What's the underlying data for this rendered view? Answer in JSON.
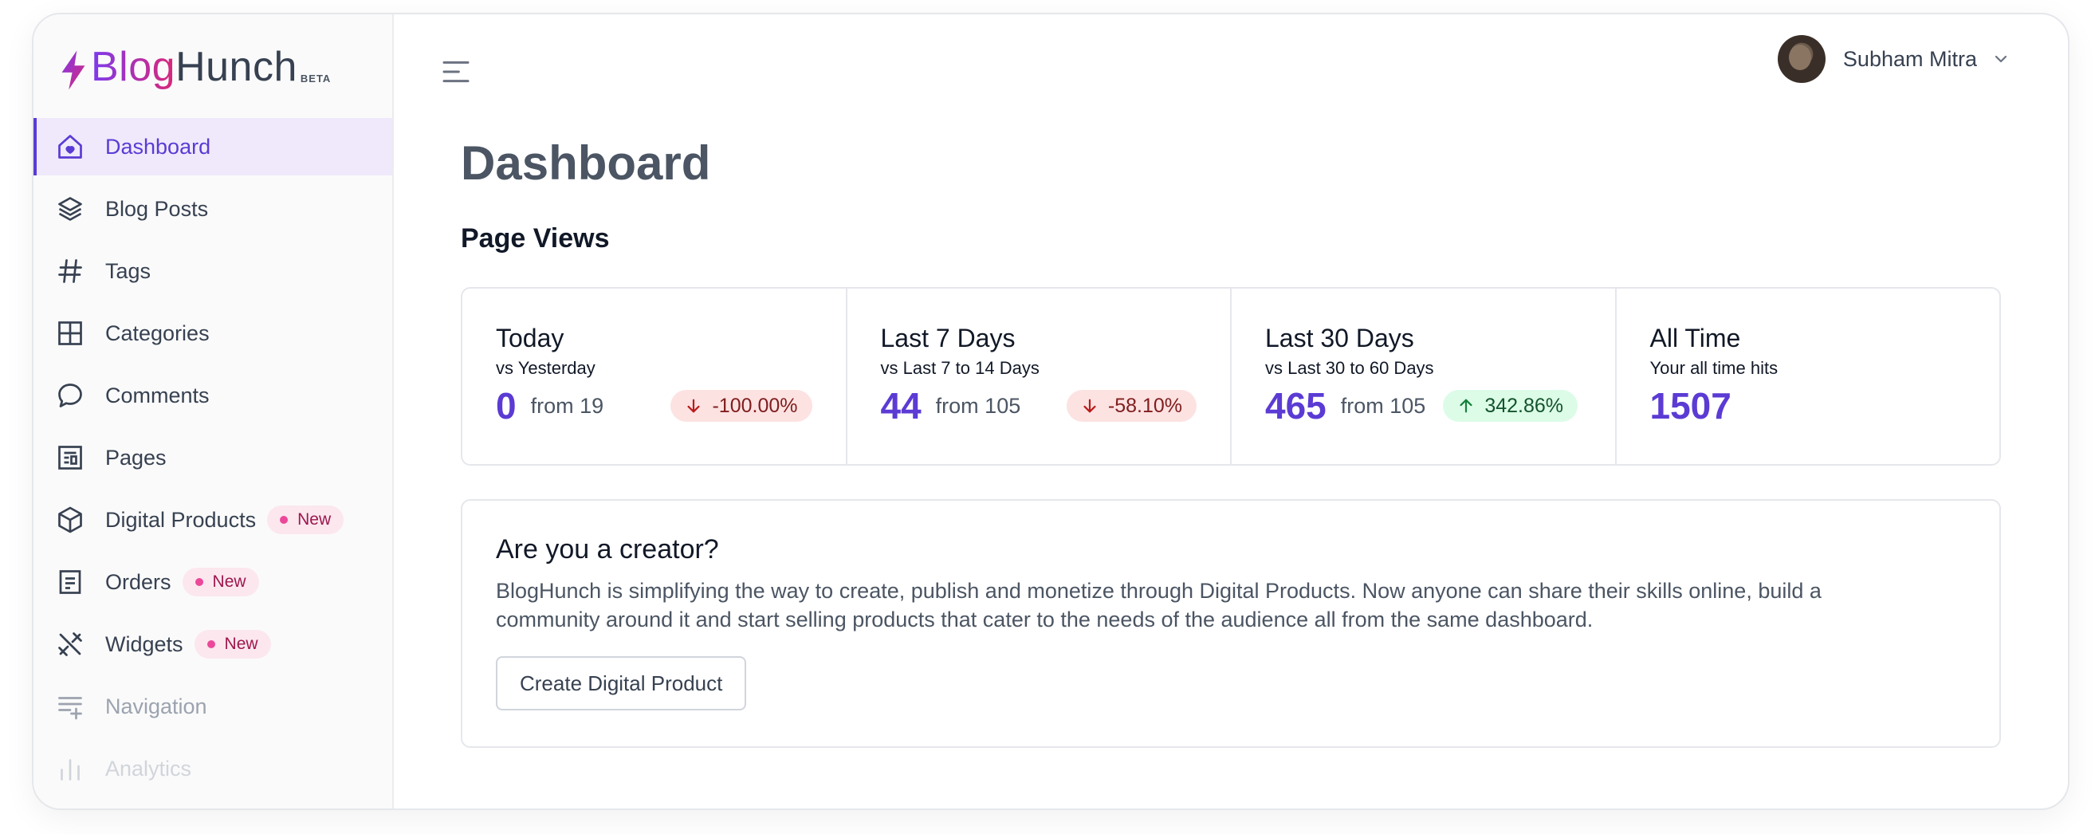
{
  "brand": {
    "name_part1": "Blog",
    "name_part2": "Hunch",
    "tag": "BETA"
  },
  "sidebar": {
    "items": [
      {
        "label": "Dashboard",
        "icon": "home-icon"
      },
      {
        "label": "Blog Posts",
        "icon": "layers-icon"
      },
      {
        "label": "Tags",
        "icon": "hash-icon"
      },
      {
        "label": "Categories",
        "icon": "grid-icon"
      },
      {
        "label": "Comments",
        "icon": "comment-icon"
      },
      {
        "label": "Pages",
        "icon": "page-icon"
      },
      {
        "label": "Digital Products",
        "icon": "box-icon",
        "badge": "New"
      },
      {
        "label": "Orders",
        "icon": "receipt-icon",
        "badge": "New"
      },
      {
        "label": "Widgets",
        "icon": "tools-icon",
        "badge": "New"
      },
      {
        "label": "Navigation",
        "icon": "navigation-icon"
      },
      {
        "label": "Analytics",
        "icon": "chart-icon"
      }
    ]
  },
  "user": {
    "name": "Subham Mitra"
  },
  "main": {
    "title": "Dashboard",
    "page_views": {
      "heading": "Page Views",
      "stats": [
        {
          "title": "Today",
          "subtitle": "vs Yesterday",
          "value": "0",
          "from": "from 19",
          "change": "-100.00%"
        },
        {
          "title": "Last 7 Days",
          "subtitle": "vs Last 7 to 14 Days",
          "value": "44",
          "from": "from 105",
          "change": "-58.10%"
        },
        {
          "title": "Last 30 Days",
          "subtitle": "vs Last 30 to 60 Days",
          "value": "465",
          "from": "from 105",
          "change": "342.86%"
        },
        {
          "title": "All Time",
          "subtitle": "Your all time hits",
          "value": "1507"
        }
      ]
    },
    "creator": {
      "heading": "Are you a creator?",
      "body": "BlogHunch is simplifying the way to create, publish and monetize through Digital Products. Now anyone can share their skills online, build a community around it and start selling products that cater to the needs of the audience all from the same dashboard.",
      "button": "Create Digital Product"
    }
  },
  "colors": {
    "accent": "#5b3bd4",
    "badge_pink": "#ec4899",
    "down": "#fde2e2",
    "up": "#dcfce7"
  }
}
